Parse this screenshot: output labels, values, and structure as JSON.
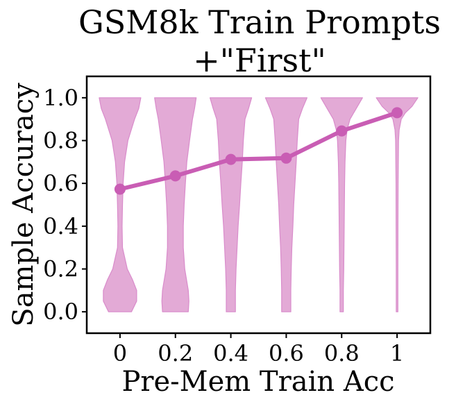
{
  "chart_data": {
    "type": "violin",
    "title_lines": [
      "GSM8k Train Prompts",
      "+\"First\""
    ],
    "xlabel": "Pre-Mem Train Acc",
    "ylabel": "Sample Accuracy",
    "categories": [
      "0",
      "0.2",
      "0.4",
      "0.6",
      "0.8",
      "1"
    ],
    "x": [
      0,
      0.2,
      0.4,
      0.6,
      0.8,
      1.0
    ],
    "xlim": [
      -0.12,
      1.12
    ],
    "ylim": [
      -0.1,
      1.1
    ],
    "yticks": [
      0.0,
      0.2,
      0.4,
      0.6,
      0.8,
      1.0
    ],
    "ytick_labels": [
      "0.0",
      "0.2",
      "0.4",
      "0.6",
      "0.8",
      "1.0"
    ],
    "grid": false,
    "colors": {
      "violin_fill": "#e3aad6",
      "violin_edge": "#d98ccb",
      "mean_line": "#c95db4"
    },
    "mean_line": {
      "y": [
        0.573,
        0.635,
        0.712,
        0.718,
        0.845,
        0.93
      ]
    },
    "violins": [
      {
        "x": 0.0,
        "profile": [
          [
            0.0,
            0.55
          ],
          [
            0.05,
            0.8
          ],
          [
            0.1,
            0.8
          ],
          [
            0.15,
            0.6
          ],
          [
            0.2,
            0.35
          ],
          [
            0.3,
            0.12
          ],
          [
            0.4,
            0.1
          ],
          [
            0.5,
            0.12
          ],
          [
            0.6,
            0.15
          ],
          [
            0.7,
            0.22
          ],
          [
            0.8,
            0.38
          ],
          [
            0.9,
            0.7
          ],
          [
            0.95,
            0.9
          ],
          [
            1.0,
            1.0
          ]
        ]
      },
      {
        "x": 0.2,
        "profile": [
          [
            0.0,
            0.62
          ],
          [
            0.05,
            0.65
          ],
          [
            0.1,
            0.62
          ],
          [
            0.2,
            0.45
          ],
          [
            0.3,
            0.38
          ],
          [
            0.4,
            0.38
          ],
          [
            0.5,
            0.42
          ],
          [
            0.6,
            0.48
          ],
          [
            0.7,
            0.55
          ],
          [
            0.8,
            0.68
          ],
          [
            0.9,
            0.82
          ],
          [
            0.95,
            0.92
          ],
          [
            1.0,
            1.0
          ]
        ]
      },
      {
        "x": 0.4,
        "profile": [
          [
            0.0,
            0.22
          ],
          [
            0.1,
            0.22
          ],
          [
            0.2,
            0.25
          ],
          [
            0.3,
            0.3
          ],
          [
            0.4,
            0.35
          ],
          [
            0.5,
            0.42
          ],
          [
            0.6,
            0.48
          ],
          [
            0.7,
            0.55
          ],
          [
            0.8,
            0.6
          ],
          [
            0.9,
            0.68
          ],
          [
            0.95,
            0.85
          ],
          [
            1.0,
            1.0
          ]
        ]
      },
      {
        "x": 0.6,
        "profile": [
          [
            0.0,
            0.22
          ],
          [
            0.1,
            0.22
          ],
          [
            0.2,
            0.24
          ],
          [
            0.3,
            0.27
          ],
          [
            0.4,
            0.32
          ],
          [
            0.5,
            0.36
          ],
          [
            0.6,
            0.42
          ],
          [
            0.7,
            0.48
          ],
          [
            0.8,
            0.53
          ],
          [
            0.9,
            0.6
          ],
          [
            0.95,
            0.78
          ],
          [
            1.0,
            1.0
          ]
        ]
      },
      {
        "x": 0.8,
        "profile": [
          [
            0.0,
            0.08
          ],
          [
            0.1,
            0.08
          ],
          [
            0.2,
            0.1
          ],
          [
            0.3,
            0.11
          ],
          [
            0.4,
            0.12
          ],
          [
            0.5,
            0.13
          ],
          [
            0.6,
            0.14
          ],
          [
            0.7,
            0.16
          ],
          [
            0.8,
            0.2
          ],
          [
            0.85,
            0.26
          ],
          [
            0.9,
            0.4
          ],
          [
            0.95,
            0.7
          ],
          [
            1.0,
            1.0
          ]
        ]
      },
      {
        "x": 1.0,
        "profile": [
          [
            0.0,
            0.04
          ],
          [
            0.2,
            0.04
          ],
          [
            0.4,
            0.045
          ],
          [
            0.6,
            0.05
          ],
          [
            0.7,
            0.06
          ],
          [
            0.8,
            0.07
          ],
          [
            0.85,
            0.1
          ],
          [
            0.9,
            0.2
          ],
          [
            0.93,
            0.4
          ],
          [
            0.96,
            0.72
          ],
          [
            1.0,
            1.0
          ]
        ]
      }
    ]
  }
}
